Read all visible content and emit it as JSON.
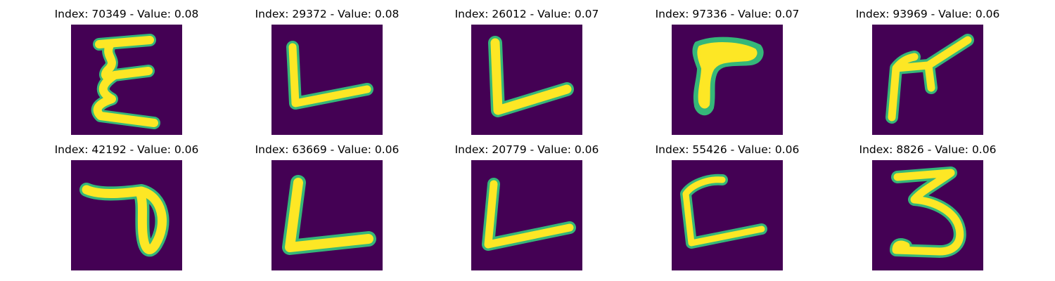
{
  "figure": {
    "background_color": "#440154",
    "stroke_color": "#fde725",
    "edge_color": "#35b779",
    "panels": [
      {
        "title": "Index: 70349 - Value: 0.08",
        "index": 70349,
        "value": 0.08,
        "glyph": "E"
      },
      {
        "title": "Index: 29372 - Value: 0.08",
        "index": 29372,
        "value": 0.08,
        "glyph": "L"
      },
      {
        "title": "Index: 26012 - Value: 0.07",
        "index": 26012,
        "value": 0.07,
        "glyph": "L"
      },
      {
        "title": "Index: 97336 - Value: 0.07",
        "index": 97336,
        "value": 0.07,
        "glyph": "7-like"
      },
      {
        "title": "Index: 93969 - Value: 0.06",
        "index": 93969,
        "value": 0.06,
        "glyph": "r-like"
      },
      {
        "title": "Index: 42192 - Value: 0.06",
        "index": 42192,
        "value": 0.06,
        "glyph": "D-like"
      },
      {
        "title": "Index: 63669 - Value: 0.06",
        "index": 63669,
        "value": 0.06,
        "glyph": "L"
      },
      {
        "title": "Index: 20779 - Value: 0.06",
        "index": 20779,
        "value": 0.06,
        "glyph": "L"
      },
      {
        "title": "Index: 55426 - Value: 0.06",
        "index": 55426,
        "value": 0.06,
        "glyph": "L"
      },
      {
        "title": "Index: 8826 - Value: 0.06",
        "index": 8826,
        "value": 0.06,
        "glyph": "3"
      }
    ]
  }
}
